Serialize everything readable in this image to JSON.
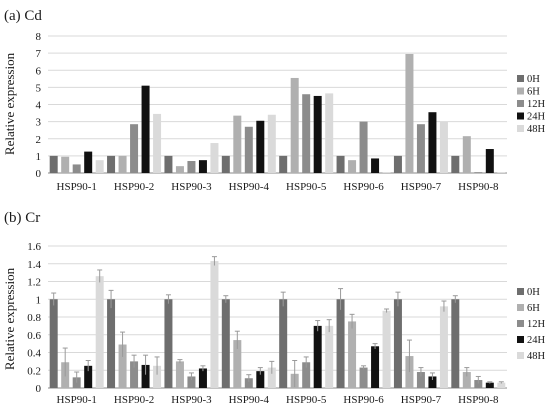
{
  "series_names": [
    "0H",
    "6H",
    "12H",
    "24H",
    "48H"
  ],
  "series_colors": [
    "#6e6e6e",
    "#b0b0b0",
    "#8c8c8c",
    "#111111",
    "#dadada"
  ],
  "chart_data": [
    {
      "type": "bar",
      "panel_label": "(a) Cd",
      "ylabel": "Relative expression",
      "ylim": [
        0,
        8
      ],
      "yticks": [
        "0",
        "1",
        "2",
        "3",
        "4",
        "5",
        "6",
        "7",
        "8"
      ],
      "categories": [
        "HSP90-1",
        "HSP90-2",
        "HSP90-3",
        "HSP90-4",
        "HSP90-5",
        "HSP90-6",
        "HSP90-7",
        "HSP90-8"
      ],
      "legend_position": "right",
      "series": [
        {
          "name": "0H",
          "values": [
            1.0,
            1.0,
            1.0,
            1.0,
            1.0,
            1.0,
            1.0,
            1.0
          ]
        },
        {
          "name": "6H",
          "values": [
            0.95,
            1.0,
            0.4,
            3.35,
            5.55,
            0.75,
            6.95,
            2.15
          ]
        },
        {
          "name": "12H",
          "values": [
            0.5,
            2.85,
            0.7,
            2.7,
            4.6,
            3.0,
            2.85,
            0.05
          ]
        },
        {
          "name": "24H",
          "values": [
            1.25,
            5.1,
            0.75,
            3.05,
            4.5,
            0.85,
            3.55,
            1.4
          ]
        },
        {
          "name": "48H",
          "values": [
            0.75,
            3.45,
            1.75,
            3.4,
            4.65,
            0.05,
            3.0,
            0.05
          ]
        }
      ]
    },
    {
      "type": "bar",
      "panel_label": "(b) Cr",
      "ylabel": "Relative expression",
      "ylim": [
        0,
        1.6
      ],
      "yticks": [
        "0",
        "0.2",
        "0.4",
        "0.6",
        "0.8",
        "1",
        "1.2",
        "1.4",
        "1.6"
      ],
      "categories": [
        "HSP90-1",
        "HSP90-2",
        "HSP90-3",
        "HSP90-4",
        "HSP90-5",
        "HSP90-6",
        "HSP90-7",
        "HSP90-8"
      ],
      "legend_position": "right",
      "series": [
        {
          "name": "0H",
          "values": [
            1.0,
            1.0,
            1.0,
            1.0,
            1.0,
            1.0,
            1.0,
            1.0
          ],
          "errors": [
            0.07,
            0.1,
            0.05,
            0.04,
            0.08,
            0.12,
            0.08,
            0.04
          ]
        },
        {
          "name": "6H",
          "values": [
            0.29,
            0.49,
            0.3,
            0.54,
            0.16,
            0.75,
            0.36,
            0.18
          ],
          "errors": [
            0.16,
            0.14,
            0.02,
            0.1,
            0.15,
            0.08,
            0.18,
            0.05
          ]
        },
        {
          "name": "12H",
          "values": [
            0.12,
            0.3,
            0.13,
            0.11,
            0.29,
            0.23,
            0.18,
            0.09
          ],
          "errors": [
            0.06,
            0.07,
            0.04,
            0.04,
            0.06,
            0.02,
            0.05,
            0.04
          ]
        },
        {
          "name": "24H",
          "values": [
            0.25,
            0.26,
            0.22,
            0.19,
            0.7,
            0.47,
            0.13,
            0.06
          ],
          "errors": [
            0.06,
            0.11,
            0.03,
            0.04,
            0.06,
            0.03,
            0.04,
            0.01
          ]
        },
        {
          "name": "48H",
          "values": [
            1.26,
            0.25,
            1.43,
            0.23,
            0.7,
            0.87,
            0.92,
            0.06
          ],
          "errors": [
            0.07,
            0.1,
            0.05,
            0.07,
            0.07,
            0.02,
            0.06,
            0.01
          ]
        }
      ]
    }
  ]
}
